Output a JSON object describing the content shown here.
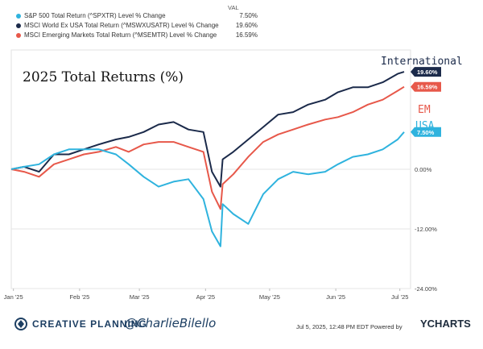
{
  "legend": {
    "header": "VAL",
    "items": [
      {
        "name": "S&P 500 Total Return (^SPXTR) Level % Change",
        "value": "7.50%",
        "color": "#2fb3de"
      },
      {
        "name": "MSCI World Ex USA Total Return (^MSWXUSATR) Level % Change",
        "value": "19.60%",
        "color": "#1b2a4a"
      },
      {
        "name": "MSCI Emerging Markets Total Return (^MSEMTR) Level % Change",
        "value": "16.59%",
        "color": "#e7584a"
      }
    ]
  },
  "chart_data": {
    "type": "line",
    "title": "2025 Total Returns (%)",
    "x_tick_labels": [
      "Jan '25",
      "Feb '25",
      "Mar '25",
      "Apr '25",
      "May '25",
      "Jun '25",
      "Jul '25"
    ],
    "y_tick_labels": [
      "0.00%",
      "-12.00%",
      "-24.00%"
    ],
    "ylim": [
      -24,
      24
    ],
    "x": [
      "2024-12-31",
      "2025-01-06",
      "2025-01-13",
      "2025-01-20",
      "2025-01-27",
      "2025-02-03",
      "2025-02-10",
      "2025-02-18",
      "2025-02-24",
      "2025-03-03",
      "2025-03-10",
      "2025-03-17",
      "2025-03-24",
      "2025-03-31",
      "2025-04-04",
      "2025-04-08",
      "2025-04-09",
      "2025-04-14",
      "2025-04-21",
      "2025-04-28",
      "2025-05-05",
      "2025-05-12",
      "2025-05-19",
      "2025-05-27",
      "2025-06-02",
      "2025-06-09",
      "2025-06-16",
      "2025-06-23",
      "2025-06-30",
      "2025-07-03"
    ],
    "series": [
      {
        "name": "MSCI World Ex USA Total Return (^MSWXUSATR) Level % Change",
        "label": "International",
        "end_label": "19.60%",
        "color": "#1b2a4a",
        "values": [
          0,
          0.5,
          -0.5,
          3,
          3,
          4,
          5,
          6,
          6.5,
          7.5,
          9,
          9.5,
          8,
          7.5,
          -0.5,
          -3.5,
          2,
          3.5,
          6,
          8.5,
          11,
          11.5,
          13,
          14,
          15.5,
          16.5,
          16.5,
          17.5,
          19.2,
          19.6
        ]
      },
      {
        "name": "MSCI Emerging Markets Total Return (^MSEMTR) Level % Change",
        "label": "EM",
        "end_label": "16.59%",
        "color": "#e7584a",
        "values": [
          0,
          -0.5,
          -1.5,
          1,
          2,
          3,
          3.5,
          4.5,
          3.5,
          5,
          5.5,
          5.5,
          4.5,
          3.5,
          -4.5,
          -8,
          -3,
          -1,
          2.5,
          5.5,
          7,
          8,
          9,
          10,
          10.5,
          11.5,
          13,
          14,
          15.8,
          16.59
        ]
      },
      {
        "name": "S&P 500 Total Return (^SPXTR) Level % Change",
        "label": "USA",
        "end_label": "7.50%",
        "color": "#2fb3de",
        "values": [
          0,
          0.5,
          1,
          3,
          4,
          4,
          4,
          3,
          1,
          -1.5,
          -3.5,
          -2.5,
          -2,
          -6,
          -12.5,
          -15.5,
          -7,
          -9,
          -11,
          -5,
          -2,
          -0.5,
          -1,
          -0.5,
          1,
          2.5,
          3,
          4,
          6,
          7.5
        ]
      }
    ]
  },
  "footer": {
    "brand": "CREATIVE PLANNING",
    "handle": "@CharlieBilello",
    "timestamp": "Jul 5, 2025, 12:48 PM EDT Powered by",
    "provider": "YCHARTS"
  }
}
